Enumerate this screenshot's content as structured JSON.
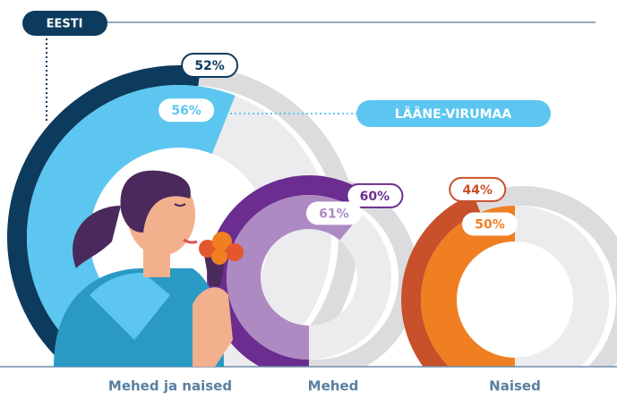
{
  "chart_data": {
    "type": "donut",
    "categories": [
      "Mehed ja naised",
      "Mehed",
      "Naised"
    ],
    "series": [
      {
        "name": "EESTI",
        "color": "#0d3b5e",
        "colors": [
          "#0d3b5e",
          "#6b2d8f",
          "#c8502a"
        ],
        "values": [
          52,
          60,
          44
        ],
        "value_labels": [
          "52%",
          "60%",
          "44%"
        ]
      },
      {
        "name": "LÄÄNE-VIRUMAA",
        "color": "#5cc6f0",
        "colors": [
          "#5cc6f0",
          "#ad8ac2",
          "#f07f22"
        ],
        "values": [
          56,
          61,
          50
        ],
        "value_labels": [
          "56%",
          "61%",
          "50%"
        ]
      }
    ]
  }
}
